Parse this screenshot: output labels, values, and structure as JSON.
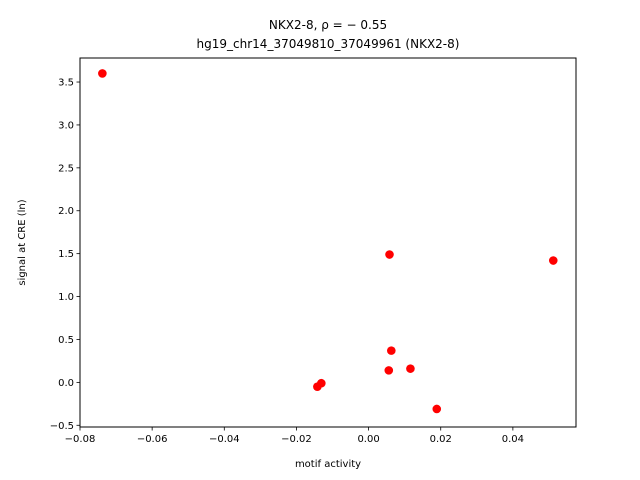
{
  "chart_data": {
    "type": "scatter",
    "title_line1": "NKX2-8, ρ = − 0.55",
    "title_line2": "hg19_chr14_37049810_37049961 (NKX2-8)",
    "xlabel": "motif activity",
    "ylabel": "signal at CRE (ln)",
    "xlim": [
      -0.08,
      0.0575
    ],
    "ylim": [
      -0.52,
      3.78
    ],
    "xticks": [
      -0.08,
      -0.06,
      -0.04,
      -0.02,
      0.0,
      0.02,
      0.04
    ],
    "xtick_labels": [
      "−0.08",
      "−0.06",
      "−0.04",
      "−0.02",
      "0.00",
      "0.02",
      "0.04"
    ],
    "yticks": [
      -0.5,
      0.0,
      0.5,
      1.0,
      1.5,
      2.0,
      2.5,
      3.0,
      3.5
    ],
    "ytick_labels": [
      "−0.5",
      "0.0",
      "0.5",
      "1.0",
      "1.5",
      "2.0",
      "2.5",
      "3.0",
      "3.5"
    ],
    "marker_color": "#ff0000",
    "grid": false,
    "points": [
      {
        "x": -0.0738,
        "y": 3.6
      },
      {
        "x": 0.0058,
        "y": 1.49
      },
      {
        "x": 0.0512,
        "y": 1.42
      },
      {
        "x": 0.0063,
        "y": 0.37
      },
      {
        "x": 0.0116,
        "y": 0.16
      },
      {
        "x": 0.0056,
        "y": 0.14
      },
      {
        "x": -0.0131,
        "y": -0.01
      },
      {
        "x": -0.0142,
        "y": -0.05
      },
      {
        "x": 0.0189,
        "y": -0.31
      }
    ]
  }
}
